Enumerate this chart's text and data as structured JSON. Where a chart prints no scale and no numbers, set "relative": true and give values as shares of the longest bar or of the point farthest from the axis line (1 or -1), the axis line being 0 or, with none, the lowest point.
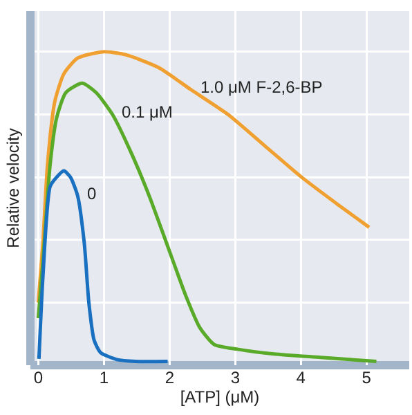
{
  "chart_data": {
    "type": "line",
    "xlabel": "[ATP] (μM)",
    "ylabel": "Relative velocity",
    "relative": true,
    "xlim": [
      -0.12,
      5.65
    ],
    "xticks": [
      0,
      1,
      2,
      3,
      4,
      5
    ],
    "grid": true,
    "legend": false,
    "marker": "none",
    "line_style": "solid",
    "series": [
      {
        "name": "1.0 μM F-2,6-BP",
        "color": "#f0a030",
        "x": [
          0,
          0.07,
          0.14,
          0.25,
          0.39,
          0.6,
          0.99,
          1.34,
          1.83,
          2.32,
          2.89,
          3.45,
          4.01,
          4.58,
          5.04
        ],
        "values": [
          0.2,
          0.39,
          0.64,
          0.84,
          0.93,
          0.98,
          1,
          0.99,
          0.95,
          0.88,
          0.8,
          0.7,
          0.6,
          0.51,
          0.44
        ]
      },
      {
        "name": "0.1 μM",
        "color": "#5aaa2a",
        "x": [
          0,
          0.07,
          0.18,
          0.28,
          0.42,
          0.67,
          0.88,
          1.13,
          1.41,
          1.69,
          1.97,
          2.25,
          2.46,
          2.68,
          3.03,
          3.59,
          4.3,
          5.15
        ],
        "values": [
          0.15,
          0.33,
          0.64,
          0.79,
          0.87,
          0.9,
          0.87,
          0.8,
          0.68,
          0.54,
          0.38,
          0.22,
          0.12,
          0.066,
          0.051,
          0.036,
          0.025,
          0.012
        ]
      },
      {
        "name": "0",
        "color": "#1a70c0",
        "x": [
          0.01,
          0.07,
          0.18,
          0.28,
          0.39,
          0.49,
          0.6,
          0.7,
          0.77,
          0.85,
          0.95,
          1.2,
          1.48,
          1.97
        ],
        "values": [
          0.02,
          0.28,
          0.57,
          0.6,
          0.62,
          0.6,
          0.54,
          0.39,
          0.2,
          0.08,
          0.04,
          0.018,
          0.012,
          0.012
        ]
      }
    ]
  }
}
